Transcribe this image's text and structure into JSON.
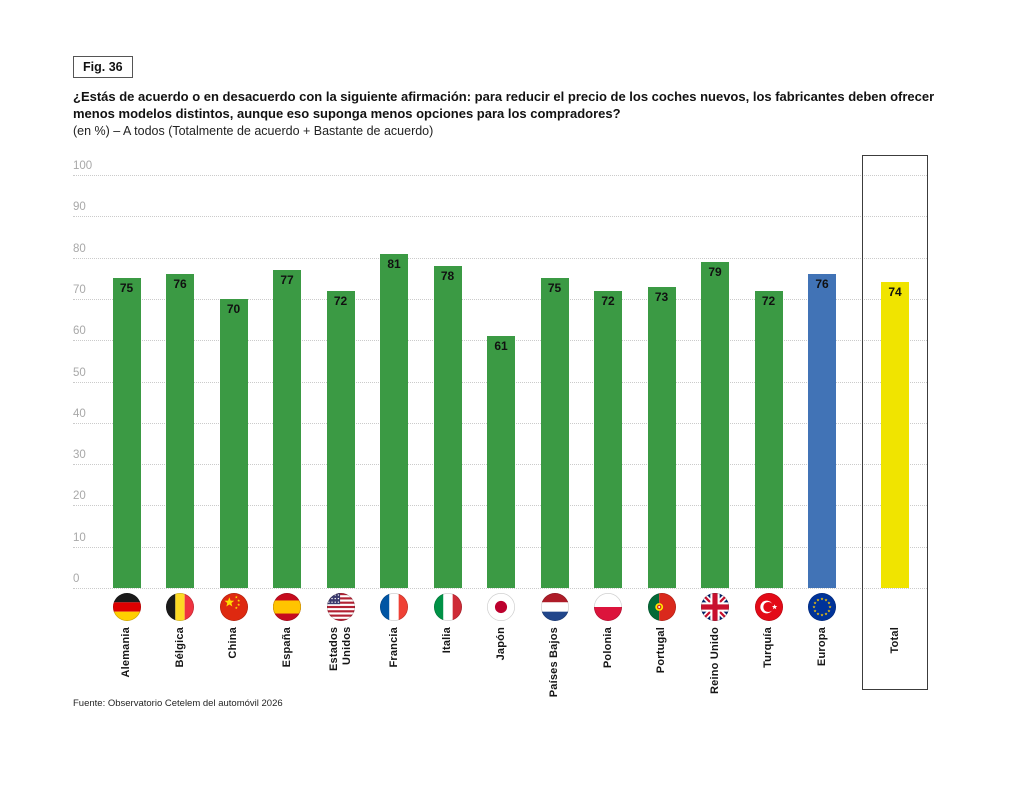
{
  "figure": {
    "label": "Fig. 36"
  },
  "header": {
    "title": "¿Estás de acuerdo o en desacuerdo con la siguiente afirmación: para reducir el precio de los coches nuevos, los fabricantes deben ofrecer menos modelos distintos, aunque eso suponga menos opciones para los compradores?",
    "subtitle": "(en %) – A todos (Totalmente de acuerdo + Bastante de acuerdo)"
  },
  "footer": {
    "source": "Fuente: Observatorio Cetelem del automóvil 2026"
  },
  "colors": {
    "country_bar": "#3B9A44",
    "europe_bar": "#4173B6",
    "total_bar": "#F0E400",
    "value_label": "#111111",
    "axis_label": "#A8A8A8",
    "gridline": "#CBCBCB"
  },
  "chart_data": {
    "type": "bar",
    "title": "¿Estás de acuerdo o en desacuerdo con la siguiente afirmación: para reducir el precio de los coches nuevos, los fabricantes deben ofrecer menos modelos distintos, aunque eso suponga menos opciones para los compradores?",
    "subtitle": "(en %) – A todos (Totalmente de acuerdo + Bastante de acuerdo)",
    "categories": [
      "Alemania",
      "Bélgica",
      "China",
      "España",
      "Estados Unidos",
      "Francia",
      "Italia",
      "Japón",
      "Países Bajos",
      "Polonia",
      "Portugal",
      "Reino Unido",
      "Turquía",
      "Europa",
      "Total"
    ],
    "values": [
      75,
      76,
      70,
      77,
      72,
      81,
      78,
      61,
      75,
      72,
      73,
      79,
      72,
      76,
      74
    ],
    "flags": [
      "germany",
      "belgium",
      "china",
      "spain",
      "usa",
      "france",
      "italy",
      "japan",
      "netherlands",
      "poland",
      "portugal",
      "uk",
      "turkey",
      "eu",
      null
    ],
    "highlights": {
      "Europa": "europe",
      "Total": "total"
    },
    "boxed_category": "Total",
    "value_labels": "inside-top",
    "xlabel": "",
    "ylabel": "",
    "ylim": [
      0,
      100
    ],
    "yticks": [
      0,
      10,
      20,
      30,
      40,
      50,
      60,
      70,
      80,
      90,
      100
    ],
    "grid": "dotted-horizontal",
    "legend": "none"
  }
}
